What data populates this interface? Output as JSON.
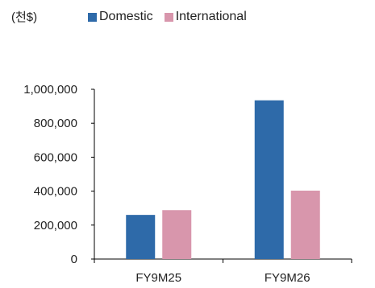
{
  "chart_data": {
    "type": "bar",
    "unit_label": "(천$)",
    "categories": [
      "FY9M25",
      "FY9M26"
    ],
    "series": [
      {
        "name": "Domestic",
        "color": "#2e6aa9",
        "values": [
          260000,
          935000
        ]
      },
      {
        "name": "International",
        "color": "#d896ac",
        "values": [
          288000,
          403000
        ]
      }
    ],
    "ylim": [
      0,
      1000000
    ],
    "yticks": [
      "0",
      "200,000",
      "400,000",
      "600,000",
      "800,000",
      "1,000,000"
    ],
    "ytick_values": [
      0,
      200000,
      400000,
      600000,
      800000,
      1000000
    ],
    "legend_position": "top",
    "grid": false
  }
}
